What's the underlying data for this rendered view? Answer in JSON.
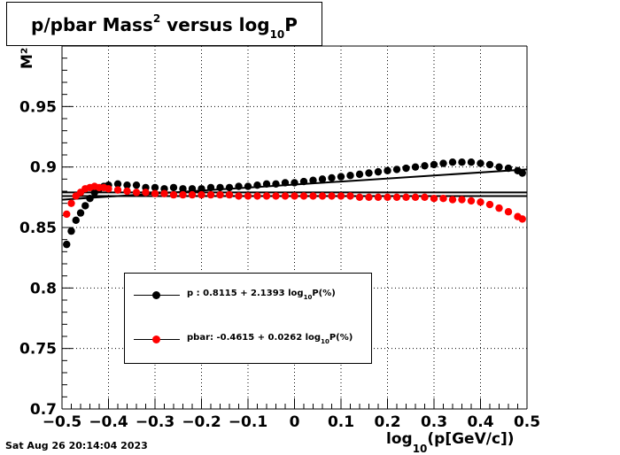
{
  "title": {
    "pre": "p/pbar Mass",
    "sup": "2",
    "mid": " versus log",
    "sub": "10",
    "post": "P"
  },
  "ylabel": "M²",
  "xlabel": {
    "pre": "log",
    "sub": "10",
    "post": "(p[GeV/c])"
  },
  "datestamp": "Sat Aug 26 20:14:04 2023",
  "colors": {
    "p": "#000000",
    "pbar": "#ff0000"
  },
  "legend": {
    "p": {
      "pre": "p   : 0.8115 + 2.1393 log",
      "sub": "10",
      "post": "P(%)"
    },
    "pbar": {
      "pre": "pbar: -0.4615 + 0.0262 log",
      "sub": "10",
      "post": "P(%)"
    }
  },
  "chart_data": {
    "type": "scatter",
    "xlim": [
      -0.5,
      0.5
    ],
    "ylim": [
      0.7,
      1.0
    ],
    "x_ticks": [
      "−0.5",
      "−0.4",
      "−0.3",
      "−0.2",
      "−0.1",
      "0",
      "0.1",
      "0.2",
      "0.3",
      "0.4",
      "0.5"
    ],
    "y_ticks": [
      "0.7",
      "0.75",
      "0.8",
      "0.85",
      "0.9",
      "0.95"
    ],
    "grid": true,
    "legend_position": "lower-left",
    "series": [
      {
        "name": "p",
        "x": [
          -0.49,
          -0.48,
          -0.47,
          -0.46,
          -0.45,
          -0.44,
          -0.43,
          -0.42,
          -0.41,
          -0.4,
          -0.38,
          -0.36,
          -0.34,
          -0.32,
          -0.3,
          -0.28,
          -0.26,
          -0.24,
          -0.22,
          -0.2,
          -0.18,
          -0.16,
          -0.14,
          -0.12,
          -0.1,
          -0.08,
          -0.06,
          -0.04,
          -0.02,
          0.0,
          0.02,
          0.04,
          0.06,
          0.08,
          0.1,
          0.12,
          0.14,
          0.16,
          0.18,
          0.2,
          0.22,
          0.24,
          0.26,
          0.28,
          0.3,
          0.32,
          0.34,
          0.36,
          0.38,
          0.4,
          0.42,
          0.44,
          0.46,
          0.48,
          0.49
        ],
        "y": [
          0.836,
          0.847,
          0.856,
          0.862,
          0.868,
          0.874,
          0.879,
          0.882,
          0.884,
          0.885,
          0.886,
          0.885,
          0.885,
          0.883,
          0.883,
          0.882,
          0.883,
          0.882,
          0.882,
          0.882,
          0.883,
          0.883,
          0.883,
          0.884,
          0.884,
          0.885,
          0.886,
          0.886,
          0.887,
          0.887,
          0.888,
          0.889,
          0.89,
          0.891,
          0.892,
          0.893,
          0.894,
          0.895,
          0.896,
          0.897,
          0.898,
          0.899,
          0.9,
          0.901,
          0.902,
          0.903,
          0.904,
          0.904,
          0.904,
          0.903,
          0.902,
          0.9,
          0.899,
          0.897,
          0.895
        ]
      },
      {
        "name": "pbar",
        "x": [
          -0.49,
          -0.48,
          -0.47,
          -0.46,
          -0.45,
          -0.44,
          -0.43,
          -0.42,
          -0.41,
          -0.4,
          -0.38,
          -0.36,
          -0.34,
          -0.32,
          -0.3,
          -0.28,
          -0.26,
          -0.24,
          -0.22,
          -0.2,
          -0.18,
          -0.16,
          -0.14,
          -0.12,
          -0.1,
          -0.08,
          -0.06,
          -0.04,
          -0.02,
          0.0,
          0.02,
          0.04,
          0.06,
          0.08,
          0.1,
          0.12,
          0.14,
          0.16,
          0.18,
          0.2,
          0.22,
          0.24,
          0.26,
          0.28,
          0.3,
          0.32,
          0.34,
          0.36,
          0.38,
          0.4,
          0.42,
          0.44,
          0.46,
          0.48,
          0.49
        ],
        "y": [
          0.861,
          0.87,
          0.876,
          0.879,
          0.882,
          0.883,
          0.884,
          0.883,
          0.883,
          0.882,
          0.881,
          0.88,
          0.879,
          0.879,
          0.878,
          0.878,
          0.877,
          0.877,
          0.877,
          0.877,
          0.877,
          0.877,
          0.877,
          0.876,
          0.876,
          0.876,
          0.876,
          0.876,
          0.876,
          0.876,
          0.876,
          0.876,
          0.876,
          0.876,
          0.876,
          0.876,
          0.875,
          0.875,
          0.875,
          0.875,
          0.875,
          0.875,
          0.875,
          0.875,
          0.874,
          0.874,
          0.873,
          0.873,
          0.872,
          0.871,
          0.869,
          0.866,
          0.863,
          0.859,
          0.857
        ]
      }
    ],
    "fit_lines": [
      {
        "name": "p fit",
        "x": [
          -0.5,
          0.5
        ],
        "y": [
          0.873,
          0.898
        ]
      },
      {
        "name": "pbar fit",
        "x": [
          -0.5,
          0.5
        ],
        "y": [
          0.876,
          0.876
        ]
      },
      {
        "name": "horizontal reference",
        "x": [
          -0.5,
          0.5
        ],
        "y": [
          0.879,
          0.879
        ]
      }
    ]
  }
}
